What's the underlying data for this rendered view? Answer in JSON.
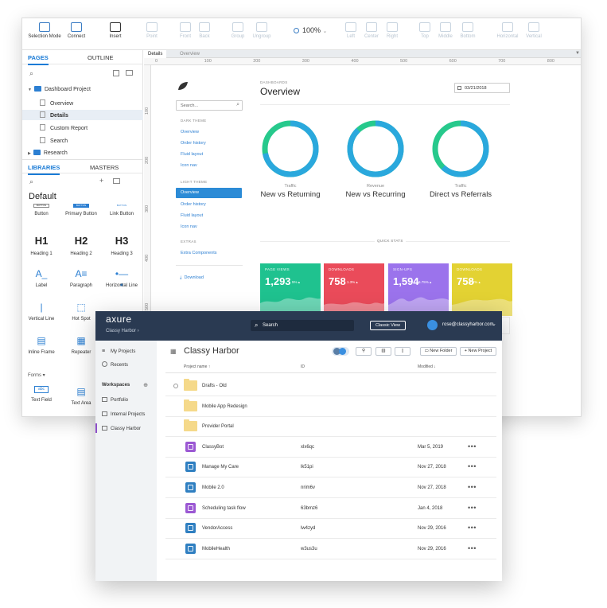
{
  "editor": {
    "toolbar": {
      "selection_mode": "Selection Mode",
      "connect": "Connect",
      "insert": "Insert",
      "point": "Point",
      "front": "Front",
      "back": "Back",
      "group": "Group",
      "ungroup": "Ungroup",
      "zoom": "100%",
      "left": "Left",
      "center": "Center",
      "right": "Right",
      "top": "Top",
      "middle": "Middle",
      "bottom": "Bottom",
      "horizontal": "Horizontal",
      "vertical": "Vertical"
    },
    "pages_tab": "PAGES",
    "outline_tab": "OUTLINE",
    "pages": [
      {
        "label": "Dashboard Project",
        "type": "folder"
      },
      {
        "label": "Overview",
        "type": "page"
      },
      {
        "label": "Details",
        "type": "page",
        "selected": true
      },
      {
        "label": "Custom Report",
        "type": "page"
      },
      {
        "label": "Search",
        "type": "page"
      },
      {
        "label": "Research",
        "type": "folder"
      }
    ],
    "libraries_tab": "LIBRARIES",
    "masters_tab": "MASTERS",
    "library_name": "Default",
    "widgets": [
      {
        "label": "Button",
        "glyph": "BUTTON"
      },
      {
        "label": "Primary Button",
        "glyph": "BUTTON"
      },
      {
        "label": "Link Button",
        "glyph": "BUTTON"
      },
      {
        "label": "Heading 1",
        "glyph": "H1"
      },
      {
        "label": "Heading 2",
        "glyph": "H2"
      },
      {
        "label": "Heading 3",
        "glyph": "H3"
      },
      {
        "label": "Label",
        "glyph": "A_"
      },
      {
        "label": "Paragraph",
        "glyph": "A≡"
      },
      {
        "label": "Horizontal Line",
        "glyph": "•—•"
      },
      {
        "label": "Vertical Line",
        "glyph": "|"
      },
      {
        "label": "Hot Spot",
        "glyph": "⬚"
      },
      {
        "label": "Image",
        "glyph": "▣"
      },
      {
        "label": "Inline Frame",
        "glyph": "▤"
      },
      {
        "label": "Repeater",
        "glyph": "▦"
      },
      {
        "label": "Forms",
        "glyph": ""
      },
      {
        "label": "Text Field",
        "glyph": "abc"
      },
      {
        "label": "Text Area",
        "glyph": "▤"
      }
    ],
    "doc_tabs": [
      "Details",
      "Overview"
    ],
    "ruler_h": [
      "0",
      "100",
      "200",
      "300",
      "400",
      "500",
      "600",
      "700",
      "800",
      "900"
    ],
    "ruler_v": [
      "100",
      "200",
      "300",
      "400",
      "500"
    ]
  },
  "dashboard": {
    "search_placeholder": "Search...",
    "nav": [
      {
        "label": "DARK THEME",
        "kind": "heading"
      },
      {
        "label": "Overview",
        "kind": "link"
      },
      {
        "label": "Order history",
        "kind": "link"
      },
      {
        "label": "Fluid layout",
        "kind": "link"
      },
      {
        "label": "Icon nav",
        "kind": "link"
      },
      {
        "label": "LIGHT THEME",
        "kind": "heading"
      },
      {
        "label": "Overview",
        "kind": "active"
      },
      {
        "label": "Order history",
        "kind": "link"
      },
      {
        "label": "Fluid layout",
        "kind": "link"
      },
      {
        "label": "Icon nav",
        "kind": "link"
      },
      {
        "label": "EXTRAS",
        "kind": "heading"
      },
      {
        "label": "Extra Components",
        "kind": "link"
      }
    ],
    "download": "Download",
    "eyebrow": "DASHBOARDS",
    "title": "Overview",
    "date": "03/21/2018",
    "donuts": [
      {
        "sub": "Traffic",
        "title": "New vs Returning",
        "fraction": 0.72
      },
      {
        "sub": "Revenue",
        "title": "New vs Recurring",
        "fraction": 0.88
      },
      {
        "sub": "Traffic",
        "title": "Direct vs Referrals",
        "fraction": 0.62
      }
    ],
    "quick_stats_label": "QUICK STATS",
    "stats": [
      {
        "label": "PAGE VIEWS",
        "value": "1,293",
        "pct": "5% ▴",
        "color": "#1fc28f"
      },
      {
        "label": "DOWNLOADS",
        "value": "758",
        "pct": "1.3% ▴",
        "color": "#ea4b5a"
      },
      {
        "label": "SIGN-UPS",
        "value": "1,594",
        "pct": "6.75% ▴",
        "color": "#9b73ec"
      },
      {
        "label": "DOWNLOADS",
        "value": "758",
        "pct": "1.3% ▴",
        "color": "#e3d233"
      }
    ],
    "colors": {
      "donut_primary": "#2aa8dd",
      "donut_secondary": "#27c98c"
    }
  },
  "cloud": {
    "logo": "axure",
    "workspace_label": "Classy Harbor",
    "search_placeholder": "Search",
    "classic_view": "Classic View",
    "user_email": "rose@classyharbor.com",
    "nav": [
      {
        "label": "My Projects"
      },
      {
        "label": "Recents"
      }
    ],
    "workspaces_label": "Workspaces",
    "workspaces": [
      {
        "label": "Portfolio"
      },
      {
        "label": "Internal Projects"
      },
      {
        "label": "Classy Harbor",
        "current": true
      }
    ],
    "title": "Classy Harbor",
    "new_folder": "New Folder",
    "new_project": "New Project",
    "columns": {
      "name": "Project name ↑",
      "id": "ID",
      "modified": "Modified ↓"
    },
    "rows": [
      {
        "kind": "folder",
        "name": "Drafts - Old",
        "id": "",
        "modified": "",
        "dots": ""
      },
      {
        "kind": "folder",
        "name": "Mobile App Redesign",
        "id": "",
        "modified": "",
        "dots": ""
      },
      {
        "kind": "folder",
        "name": "Provider Portal",
        "id": "",
        "modified": "",
        "dots": ""
      },
      {
        "kind": "purple",
        "name": "ClassyBot",
        "id": "xlx6qc",
        "modified": "Mar 5, 2019",
        "dots": "•••"
      },
      {
        "kind": "blue",
        "name": "Manage My Care",
        "id": "lk51pi",
        "modified": "Nov 27, 2018",
        "dots": "•••"
      },
      {
        "kind": "blue",
        "name": "Mobile 2.0",
        "id": "nrim6v",
        "modified": "Nov 27, 2018",
        "dots": "•••"
      },
      {
        "kind": "purple",
        "name": "Scheduling task flow",
        "id": "63bmz6",
        "modified": "Jan 4, 2018",
        "dots": "•••"
      },
      {
        "kind": "blue",
        "name": "VendorAccess",
        "id": "lw4zyd",
        "modified": "Nov 29, 2016",
        "dots": "•••"
      },
      {
        "kind": "blue",
        "name": "MobileHealth",
        "id": "w3us3u",
        "modified": "Nov 29, 2016",
        "dots": "•••"
      }
    ],
    "colors": {
      "bar": "#2a3a52",
      "purple_icon": "#9b58d3",
      "blue_icon": "#2f7fc1",
      "folder": "#f5d98a"
    }
  }
}
